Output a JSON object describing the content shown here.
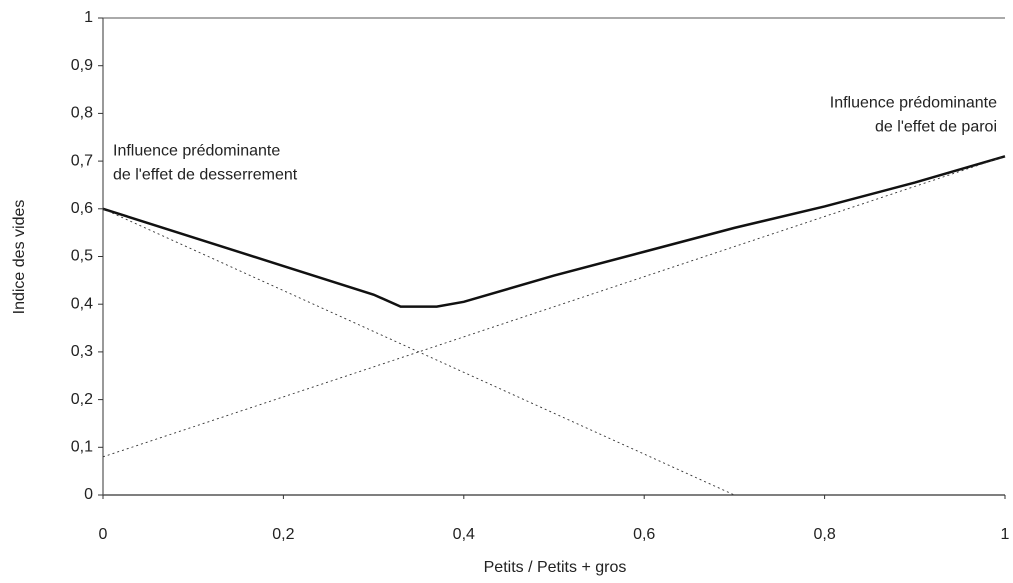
{
  "chart_data": {
    "type": "line",
    "xlabel": "Petits / Petits + gros",
    "ylabel": "Indice des vides",
    "xlim": [
      0,
      1
    ],
    "ylim": [
      0,
      1
    ],
    "xticks": [
      0,
      {
        "value": 0.2,
        "label": "0,2"
      },
      {
        "value": 0.4,
        "label": "0,4"
      },
      {
        "value": 0.6,
        "label": "0,6"
      },
      {
        "value": 0.8,
        "label": "0,8"
      },
      1
    ],
    "yticks": [
      0,
      {
        "value": 0.1,
        "label": "0,1"
      },
      {
        "value": 0.2,
        "label": "0,2"
      },
      {
        "value": 0.3,
        "label": "0,3"
      },
      {
        "value": 0.4,
        "label": "0,4"
      },
      {
        "value": 0.5,
        "label": "0,5"
      },
      {
        "value": 0.6,
        "label": "0,6"
      },
      {
        "value": 0.7,
        "label": "0,7"
      },
      {
        "value": 0.8,
        "label": "0,8"
      },
      {
        "value": 0.9,
        "label": "0,9"
      },
      1
    ],
    "series": [
      {
        "color": "#111111",
        "style": "solid",
        "x": [
          0,
          0.1,
          0.2,
          0.3,
          0.33,
          0.37,
          0.4,
          0.5,
          0.6,
          0.7,
          0.8,
          0.9,
          1
        ],
        "values": [
          0.6,
          0.54,
          0.48,
          0.42,
          0.395,
          0.395,
          0.405,
          0.46,
          0.51,
          0.56,
          0.605,
          0.655,
          0.71
        ]
      },
      {
        "color": "#333333",
        "style": "dotted",
        "x": [
          0,
          0.35,
          0.7
        ],
        "values": [
          0.6,
          0.3,
          0
        ]
      },
      {
        "color": "#333333",
        "style": "dotted",
        "x": [
          0,
          0.35,
          1
        ],
        "values": [
          0.08,
          0.3,
          0.71
        ]
      }
    ],
    "annotations": [
      {
        "lines": [
          "Influence prédominante",
          "de l'effet de desserrement"
        ],
        "x": 0,
        "y": 0.7
      },
      {
        "lines": [
          "Influence prédominante",
          "de l'effet de paroi"
        ],
        "x": 1,
        "y": 0.8
      }
    ]
  }
}
